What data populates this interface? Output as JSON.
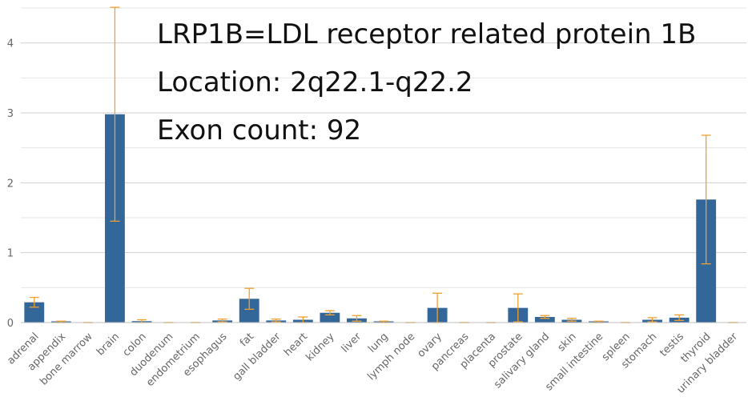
{
  "chart_data": {
    "type": "bar",
    "title": "",
    "xlabel": "",
    "ylabel": "",
    "ylim": [
      0,
      4.5
    ],
    "yticks": [
      "0",
      "1",
      "2",
      "3",
      "4"
    ],
    "grid": true,
    "colors": {
      "bar": "#336699",
      "error_bar": "#f0a030",
      "grid": "#d9d9d9",
      "axis": "#bfbfbf"
    },
    "annotations": [
      "LRP1B=LDL receptor related protein 1B",
      "Location: 2q22.1-q22.2",
      "Exon count: 92"
    ],
    "categories": [
      "adrenal",
      "appendix",
      "bone marrow",
      "brain",
      "colon",
      "duodenum",
      "endometrium",
      "esophagus",
      "fat",
      "gall bladder",
      "heart",
      "kidney",
      "liver",
      "lung",
      "lymph node",
      "ovary",
      "pancreas",
      "placenta",
      "prostate",
      "salivary gland",
      "skin",
      "small intestine",
      "spleen",
      "stomach",
      "testis",
      "thyroid",
      "urinary bladder"
    ],
    "values": [
      0.29,
      0.01,
      0.0,
      2.98,
      0.02,
      0.0,
      0.0,
      0.03,
      0.34,
      0.03,
      0.04,
      0.14,
      0.06,
      0.01,
      0.0,
      0.21,
      0.0,
      0.0,
      0.21,
      0.08,
      0.04,
      0.01,
      0.0,
      0.04,
      0.07,
      1.76,
      0.0
    ],
    "error": [
      0.07,
      0.01,
      0.0,
      1.53,
      0.02,
      0.0,
      0.0,
      0.02,
      0.15,
      0.02,
      0.04,
      0.03,
      0.04,
      0.01,
      0.0,
      0.21,
      0.0,
      0.0,
      0.2,
      0.02,
      0.02,
      0.01,
      0.0,
      0.03,
      0.04,
      0.92,
      0.0
    ]
  }
}
